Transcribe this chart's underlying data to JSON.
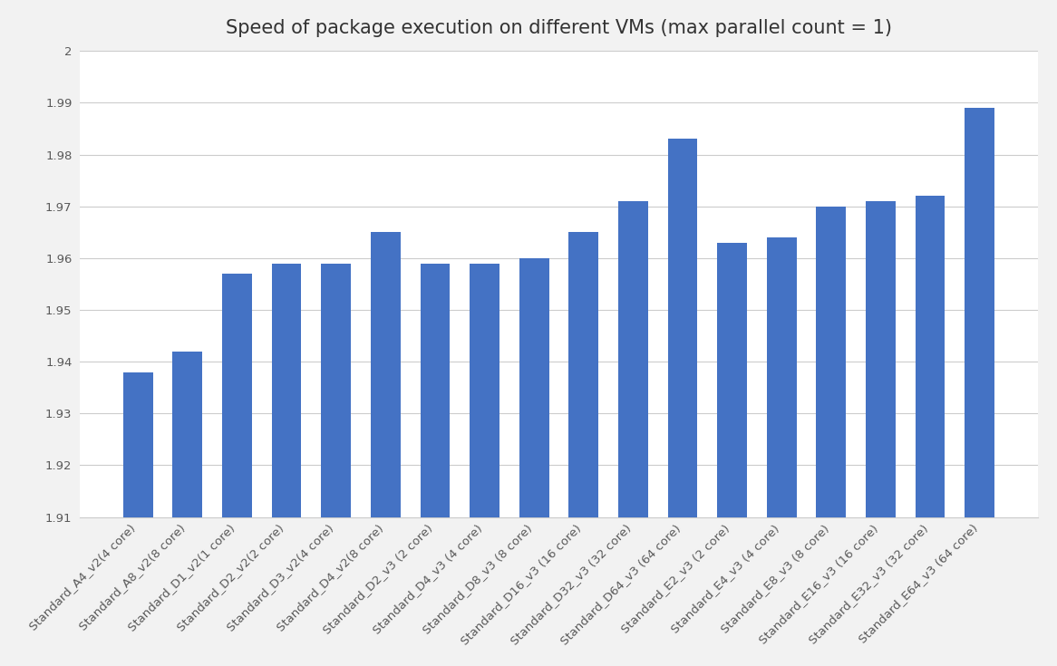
{
  "title": "Speed of package execution on different VMs (max parallel count = 1)",
  "categories": [
    "Standard_A4_v2(4 core)",
    "Standard_A8_v2(8 core)",
    "Standard_D1_v2(1 core)",
    "Standard_D2_v2(2 core)",
    "Standard_D3_v2(4 core)",
    "Standard_D4_v2(8 core)",
    "Standard_D2_v3 (2 core)",
    "Standard_D4_v3 (4 core)",
    "Standard_D8_v3 (8 core)",
    "Standard_D16_v3 (16 core)",
    "Standard_D32_v3 (32 core)",
    "Standard_D64_v3 (64 core)",
    "Standard_E2_v3 (2 core)",
    "Standard_E4_v3 (4 core)",
    "Standard_E8_v3 (8 core)",
    "Standard_E16_v3 (16 core)",
    "Standard_E32_v3 (32 core)",
    "Standard_E64_v3 (64 core)"
  ],
  "values": [
    1.938,
    1.942,
    1.957,
    1.959,
    1.959,
    1.965,
    1.959,
    1.959,
    1.96,
    1.965,
    1.971,
    1.983,
    1.963,
    1.964,
    1.97,
    1.971,
    1.972,
    1.989
  ],
  "bar_color": "#4472C4",
  "ylim_min": 1.91,
  "ylim_max": 2.0,
  "ytick_values": [
    2.0,
    1.99,
    1.98,
    1.97,
    1.96,
    1.95,
    1.94,
    1.93,
    1.92,
    1.91
  ],
  "ytick_labels": [
    "2",
    "1.99",
    "1.98",
    "1.97",
    "1.96",
    "1.95",
    "1.94",
    "1.93",
    "1.92",
    "1.91"
  ],
  "background_color": "#f2f2f2",
  "plot_bg_color": "#ffffff",
  "grid_color": "#cccccc",
  "title_fontsize": 15,
  "tick_fontsize": 9.5,
  "label_color": "#595959"
}
